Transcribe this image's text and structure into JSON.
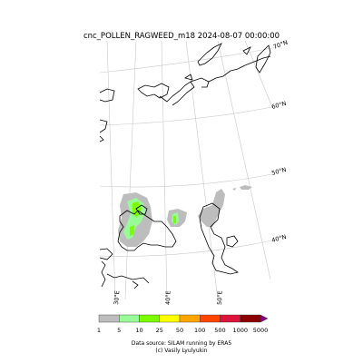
{
  "title": "cnc_POLLEN_RAGWEED_m18 2024-08-07 00:00:00",
  "lat_labels": [
    "70°N",
    "60°N",
    "50°N",
    "40°N"
  ],
  "lon_labels": [
    "30°E",
    "40°E",
    "50°E"
  ],
  "legend": {
    "tick_labels": [
      "1",
      "5",
      "10",
      "25",
      "50",
      "100",
      "500",
      "1000",
      "5000"
    ],
    "colors": [
      "#bdbdbd",
      "#98fb98",
      "#7cfc00",
      "#ffff00",
      "#ffa500",
      "#ff4500",
      "#dc143c",
      "#8b0000",
      "#800080"
    ]
  },
  "footer": {
    "line1": "Data source: SILAM running by ERA5",
    "line2": "(c) Vasily Lyulyukin"
  }
}
